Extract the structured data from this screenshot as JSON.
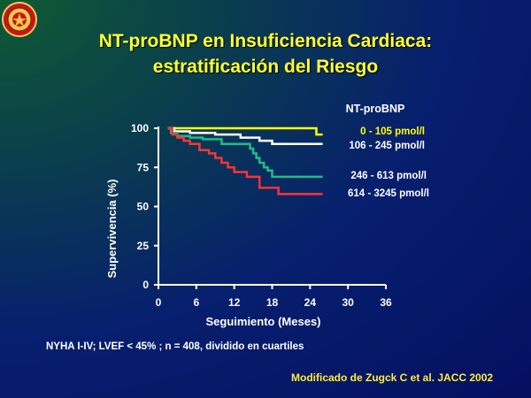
{
  "title_line1": "NT-proBNP en Insuficiencia Cardiaca:",
  "title_line2": "estratificación del Riesgo",
  "footnote": "NYHA I-IV; LVEF < 45% ; n = 408, dividido en cuartiles",
  "source": "Modificado de Zugck C et al. JACC 2002",
  "colors": {
    "background": "#071f6e",
    "title": "#ffff33",
    "axis": "#ffffff"
  },
  "chart_data": {
    "type": "line",
    "step": true,
    "title": "",
    "xlabel": "Seguimiento (Meses)",
    "ylabel": "Supervivencia (%)",
    "xlim": [
      0,
      36
    ],
    "ylim": [
      0,
      100
    ],
    "xticks": [
      0,
      6,
      12,
      18,
      24,
      30,
      36
    ],
    "yticks": [
      0,
      25,
      50,
      75,
      100
    ],
    "grid": false,
    "legend_title": "NT-proBNP",
    "legend_placement": "right",
    "series": [
      {
        "name": "0 - 105 pmol/l",
        "color": "#ffff00",
        "x": [
          1.5,
          23.8,
          25,
          26
        ],
        "y": [
          100,
          100,
          96,
          96
        ]
      },
      {
        "name": "106 - 245 pmol/l",
        "color": "#ffffff",
        "x": [
          1.5,
          2.5,
          5,
          9,
          13,
          16,
          18,
          26
        ],
        "y": [
          100,
          98,
          97,
          96,
          94,
          92,
          90,
          90
        ]
      },
      {
        "name": "246 - 613 pmol/l",
        "color": "#22bb88",
        "x": [
          1.5,
          2,
          3,
          5,
          7,
          10,
          14.5,
          15,
          15.5,
          16,
          16.7,
          17.3,
          18,
          26
        ],
        "y": [
          100,
          97,
          95,
          94,
          93,
          90,
          87,
          84,
          81,
          78,
          75,
          73,
          69,
          69
        ]
      },
      {
        "name": "614 - 3245 pmol/l",
        "color": "#ff3333",
        "x": [
          1.5,
          2.2,
          3,
          4,
          5,
          6.5,
          8,
          9,
          10,
          11,
          12,
          14,
          16,
          19,
          26
        ],
        "y": [
          100,
          96,
          94,
          92,
          90,
          86,
          84,
          81,
          78,
          75,
          72,
          69,
          62,
          58,
          58
        ]
      }
    ]
  }
}
